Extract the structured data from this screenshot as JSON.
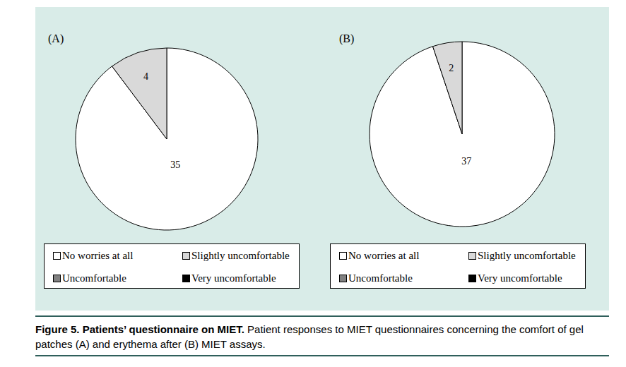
{
  "chart_data": [
    {
      "type": "pie",
      "title": "(A)",
      "categories": [
        "No worries at all",
        "Slightly uncomfortable",
        "Uncomfortable",
        "Very uncomfortable"
      ],
      "values": [
        35,
        4,
        0,
        0
      ],
      "colors": [
        "#ffffff",
        "#d9d9d9",
        "#808080",
        "#000000"
      ],
      "data_labels": true
    },
    {
      "type": "pie",
      "title": "(B)",
      "categories": [
        "No worries at all",
        "Slightly uncomfortable",
        "Uncomfortable",
        "Very uncomfortable"
      ],
      "values": [
        37,
        2,
        0,
        0
      ],
      "colors": [
        "#ffffff",
        "#d9d9d9",
        "#808080",
        "#000000"
      ],
      "data_labels": true
    }
  ],
  "caption": {
    "label": "Figure 5. Patients’ questionnaire on MIET.",
    "text": "Patient responses to MIET questionnaires concerning the comfort of gel patches (A) and erythema after (B) MIET assays."
  }
}
